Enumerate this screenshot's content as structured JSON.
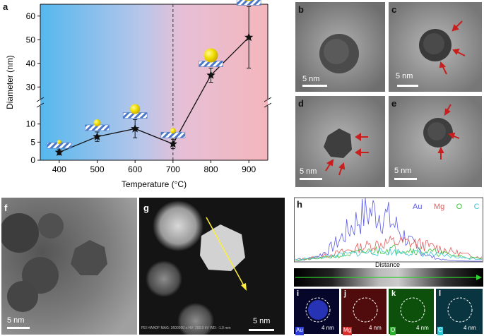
{
  "panels": {
    "a": "a",
    "b": "b",
    "c": "c",
    "d": "d",
    "e": "e",
    "f": "f",
    "g": "g",
    "h": "h",
    "i": "i",
    "j": "j",
    "k": "k",
    "l": "l"
  },
  "scalebars": {
    "b": "5 nm",
    "c": "5 nm",
    "d": "5 nm",
    "e": "5 nm",
    "f": "5 nm",
    "g": "5 nm",
    "i": "4 nm",
    "j": "4 nm",
    "k": "4 nm",
    "l": "4 nm"
  },
  "g_caption": "FEI   HAADF  MAG: 3600000 x  HV: 200.0 kV  WD: -1.0 mm",
  "h": {
    "legend": [
      "Au",
      "Mg",
      "O",
      "C"
    ],
    "colors": [
      "#5a5ae6",
      "#e65a5a",
      "#3ec43e",
      "#3ec8d8"
    ],
    "xlabel": "Distance"
  },
  "maps": {
    "elements": [
      "Au",
      "Mg",
      "O",
      "C"
    ],
    "colors": [
      "#2f3fd8",
      "#d82f2f",
      "#2fb02f",
      "#2fc8d8"
    ]
  },
  "chart_data": {
    "type": "line",
    "xlabel": "Temperature (°C)",
    "ylabel": "Diameter (nm)",
    "x": [
      400,
      500,
      600,
      700,
      800,
      900
    ],
    "xticks": [
      "400",
      "500",
      "600",
      "700",
      "800",
      "900"
    ],
    "series": [
      {
        "values": [
          2.2,
          6.5,
          8.7,
          4.5,
          35,
          51
        ],
        "errors": [
          0.7,
          1.3,
          2.5,
          1.3,
          3,
          13
        ]
      }
    ],
    "xlim": [
      350,
      950
    ],
    "ylim_lower": [
      0,
      15
    ],
    "ylim_upper": [
      25,
      65
    ],
    "yticks_lower": [
      "0",
      "5",
      "10"
    ],
    "yticks_upper": [
      "30",
      "40",
      "50",
      "60"
    ],
    "axis_break": true,
    "vline": 700,
    "background": "gradient blue→pink",
    "grid": false
  }
}
